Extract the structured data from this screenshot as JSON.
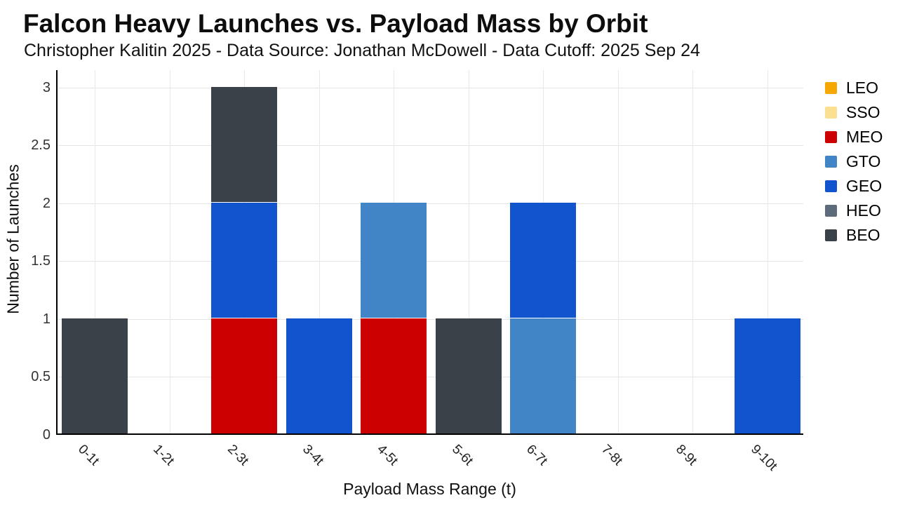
{
  "chart_data": {
    "type": "bar",
    "stacked": true,
    "title": "Falcon Heavy Launches vs. Payload Mass by Orbit",
    "subtitle": "Christopher Kalitin 2025 - Data Source: Jonathan McDowell - Data Cutoff: 2025 Sep 24",
    "xlabel": "Payload Mass Range (t)",
    "ylabel": "Number of Launches",
    "categories": [
      "0-1t",
      "1-2t",
      "2-3t",
      "3-4t",
      "4-5t",
      "5-6t",
      "6-7t",
      "7-8t",
      "8-9t",
      "9-10t"
    ],
    "series": [
      {
        "name": "LEO",
        "color": "#F5A802",
        "values": [
          0,
          0,
          0,
          0,
          0,
          0,
          0,
          0,
          0,
          0
        ]
      },
      {
        "name": "SSO",
        "color": "#FCE091",
        "values": [
          0,
          0,
          0,
          0,
          0,
          0,
          0,
          0,
          0,
          0
        ]
      },
      {
        "name": "MEO",
        "color": "#CC0000",
        "values": [
          0,
          0,
          1,
          0,
          1,
          0,
          0,
          0,
          0,
          0
        ]
      },
      {
        "name": "GTO",
        "color": "#4285C6",
        "values": [
          0,
          0,
          0,
          0,
          1,
          0,
          1,
          0,
          0,
          0
        ]
      },
      {
        "name": "GEO",
        "color": "#1254CD",
        "values": [
          0,
          0,
          1,
          1,
          0,
          0,
          1,
          0,
          0,
          1
        ]
      },
      {
        "name": "HEO",
        "color": "#5D6B7B",
        "values": [
          0,
          0,
          0,
          0,
          0,
          0,
          0,
          0,
          0,
          0
        ]
      },
      {
        "name": "BEO",
        "color": "#3B4148",
        "values": [
          1,
          0,
          1,
          0,
          0,
          1,
          0,
          0,
          0,
          0
        ]
      }
    ],
    "ytick_labels": [
      "0",
      "0.5",
      "1",
      "1.5",
      "2",
      "2.5",
      "3"
    ],
    "yticks": [
      0,
      0.5,
      1,
      1.5,
      2,
      2.5,
      3
    ],
    "ylim": [
      0,
      3.15
    ],
    "grid": true,
    "legend_position": "right"
  },
  "style": {
    "axis_color": "#000000",
    "hgrid_color": "#e4e4e4",
    "vgrid_color": "#e9e9e9",
    "background": "#ffffff"
  }
}
